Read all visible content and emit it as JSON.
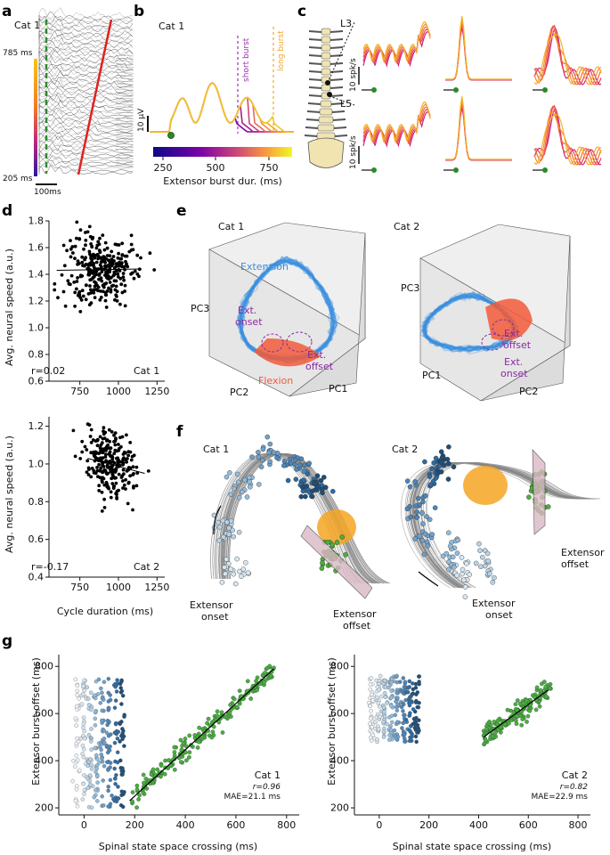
{
  "panel_labels": {
    "a": "a",
    "b": "b",
    "c": "c",
    "d": "d",
    "e": "e",
    "f": "f",
    "g": "g"
  },
  "panel_a": {
    "cat": "Cat 1",
    "top_label": "785 ms",
    "bottom_label": "205 ms",
    "scale_label": "100ms"
  },
  "panel_b": {
    "cat": "Cat 1",
    "short_burst": "short burst",
    "long_burst": "long burst",
    "scale_label": "10 µV",
    "colorbar_ticks": [
      "250",
      "500",
      "750"
    ],
    "colorbar_label": "Extensor burst dur. (ms)"
  },
  "panel_c": {
    "l3": "L3",
    "l5": "L5",
    "scale_top": "10 spk/s",
    "scale_bottom": "10 spk/s"
  },
  "panel_d": {
    "y_label": "Avg. neural speed (a.u.)",
    "x_label": "Cycle duration (ms)",
    "top": {
      "cat": "Cat 1",
      "r": "r=0.02",
      "yticks": [
        "0.6",
        "0.8",
        "1.0",
        "1.2",
        "1.4",
        "1.6",
        "1.8"
      ],
      "xticks": [
        "750",
        "1000",
        "1250"
      ]
    },
    "bottom": {
      "cat": "Cat 2",
      "r": "r=-0.17",
      "yticks": [
        "0.4",
        "0.6",
        "0.8",
        "1.0",
        "1.2"
      ],
      "xticks": [
        "750",
        "1000",
        "1250"
      ]
    }
  },
  "panel_e": {
    "cat1": "Cat 1",
    "cat2": "Cat 2",
    "extension": "Extension",
    "flexion": "Flexion",
    "ext_onset": [
      "Ext.",
      "onset"
    ],
    "ext_offset": [
      "Ext.",
      "offset"
    ],
    "pc1": "PC1",
    "pc2": "PC2",
    "pc3": "PC3"
  },
  "panel_f": {
    "cat1": "Cat 1",
    "cat2": "Cat 2",
    "ext_onset": [
      "Extensor",
      "onset"
    ],
    "ext_offset": [
      "Extensor",
      "offset"
    ]
  },
  "panel_g": {
    "y_label": "Extensor burst offset (ms)",
    "x_label": "Spinal state space crossing (ms)",
    "left": {
      "cat": "Cat 1",
      "r": "r=0.96",
      "mae": "MAE=21.1 ms"
    },
    "right": {
      "cat": "Cat 2",
      "r": "r=0.82",
      "mae": "MAE=22.9 ms"
    },
    "yticks": [
      "200",
      "400",
      "600",
      "800"
    ],
    "xticks": [
      "0",
      "200",
      "400",
      "600",
      "800"
    ]
  },
  "colors": {
    "extension": "#3a8fe0",
    "flexion": "#f25a3a",
    "onset_dark": "#1f4e7a",
    "onset_light": "#d6e6f2",
    "offset_green": "#4caf3a",
    "orange": "#f5a623",
    "purple": "#9b2fae",
    "red_trace": "#e02020"
  },
  "chart_data": [
    {
      "type": "scatter",
      "title": "Cat 1",
      "xlabel": "Cycle duration (ms)",
      "ylabel": "Avg. neural speed (a.u.)",
      "xlim": [
        550,
        1300
      ],
      "ylim": [
        0.6,
        1.8
      ],
      "r": 0.02,
      "fit": {
        "x": [
          600,
          1150
        ],
        "y": [
          1.43,
          1.44
        ]
      },
      "cloud": {
        "x_center": 880,
        "x_sd": 110,
        "y_center": 1.44,
        "y_sd": 0.14,
        "n": 300
      }
    },
    {
      "type": "scatter",
      "title": "Cat 2",
      "xlabel": "Cycle duration (ms)",
      "ylabel": "Avg. neural speed (a.u.)",
      "xlim": [
        550,
        1300
      ],
      "ylim": [
        0.4,
        1.25
      ],
      "r": -0.17,
      "fit": {
        "x": [
          800,
          1170
        ],
        "y": [
          1.03,
          0.95
        ]
      },
      "cloud": {
        "x_center": 950,
        "x_sd": 85,
        "y_center": 1.0,
        "y_sd": 0.09,
        "n": 250
      }
    },
    {
      "type": "scatter",
      "title": "Cat 1",
      "xlabel": "Spinal state space crossing (ms)",
      "ylabel": "Extensor burst offset (ms)",
      "xlim": [
        -100,
        850
      ],
      "ylim": [
        170,
        850
      ],
      "r": 0.96,
      "fit": {
        "x": [
          180,
          750
        ],
        "y": [
          230,
          790
        ]
      },
      "onset_band": {
        "x_range": [
          -30,
          150
        ],
        "y_range": [
          200,
          750
        ]
      }
    },
    {
      "type": "scatter",
      "title": "Cat 2",
      "xlabel": "Spinal state space crossing (ms)",
      "ylabel": "Extensor burst offset (ms)",
      "xlim": [
        -100,
        850
      ],
      "ylim": [
        170,
        850
      ],
      "r": 0.82,
      "fit": {
        "x": [
          420,
          680
        ],
        "y": [
          500,
          700
        ]
      },
      "onset_band": {
        "x_range": [
          -30,
          150
        ],
        "y_range": [
          480,
          760
        ]
      }
    }
  ]
}
